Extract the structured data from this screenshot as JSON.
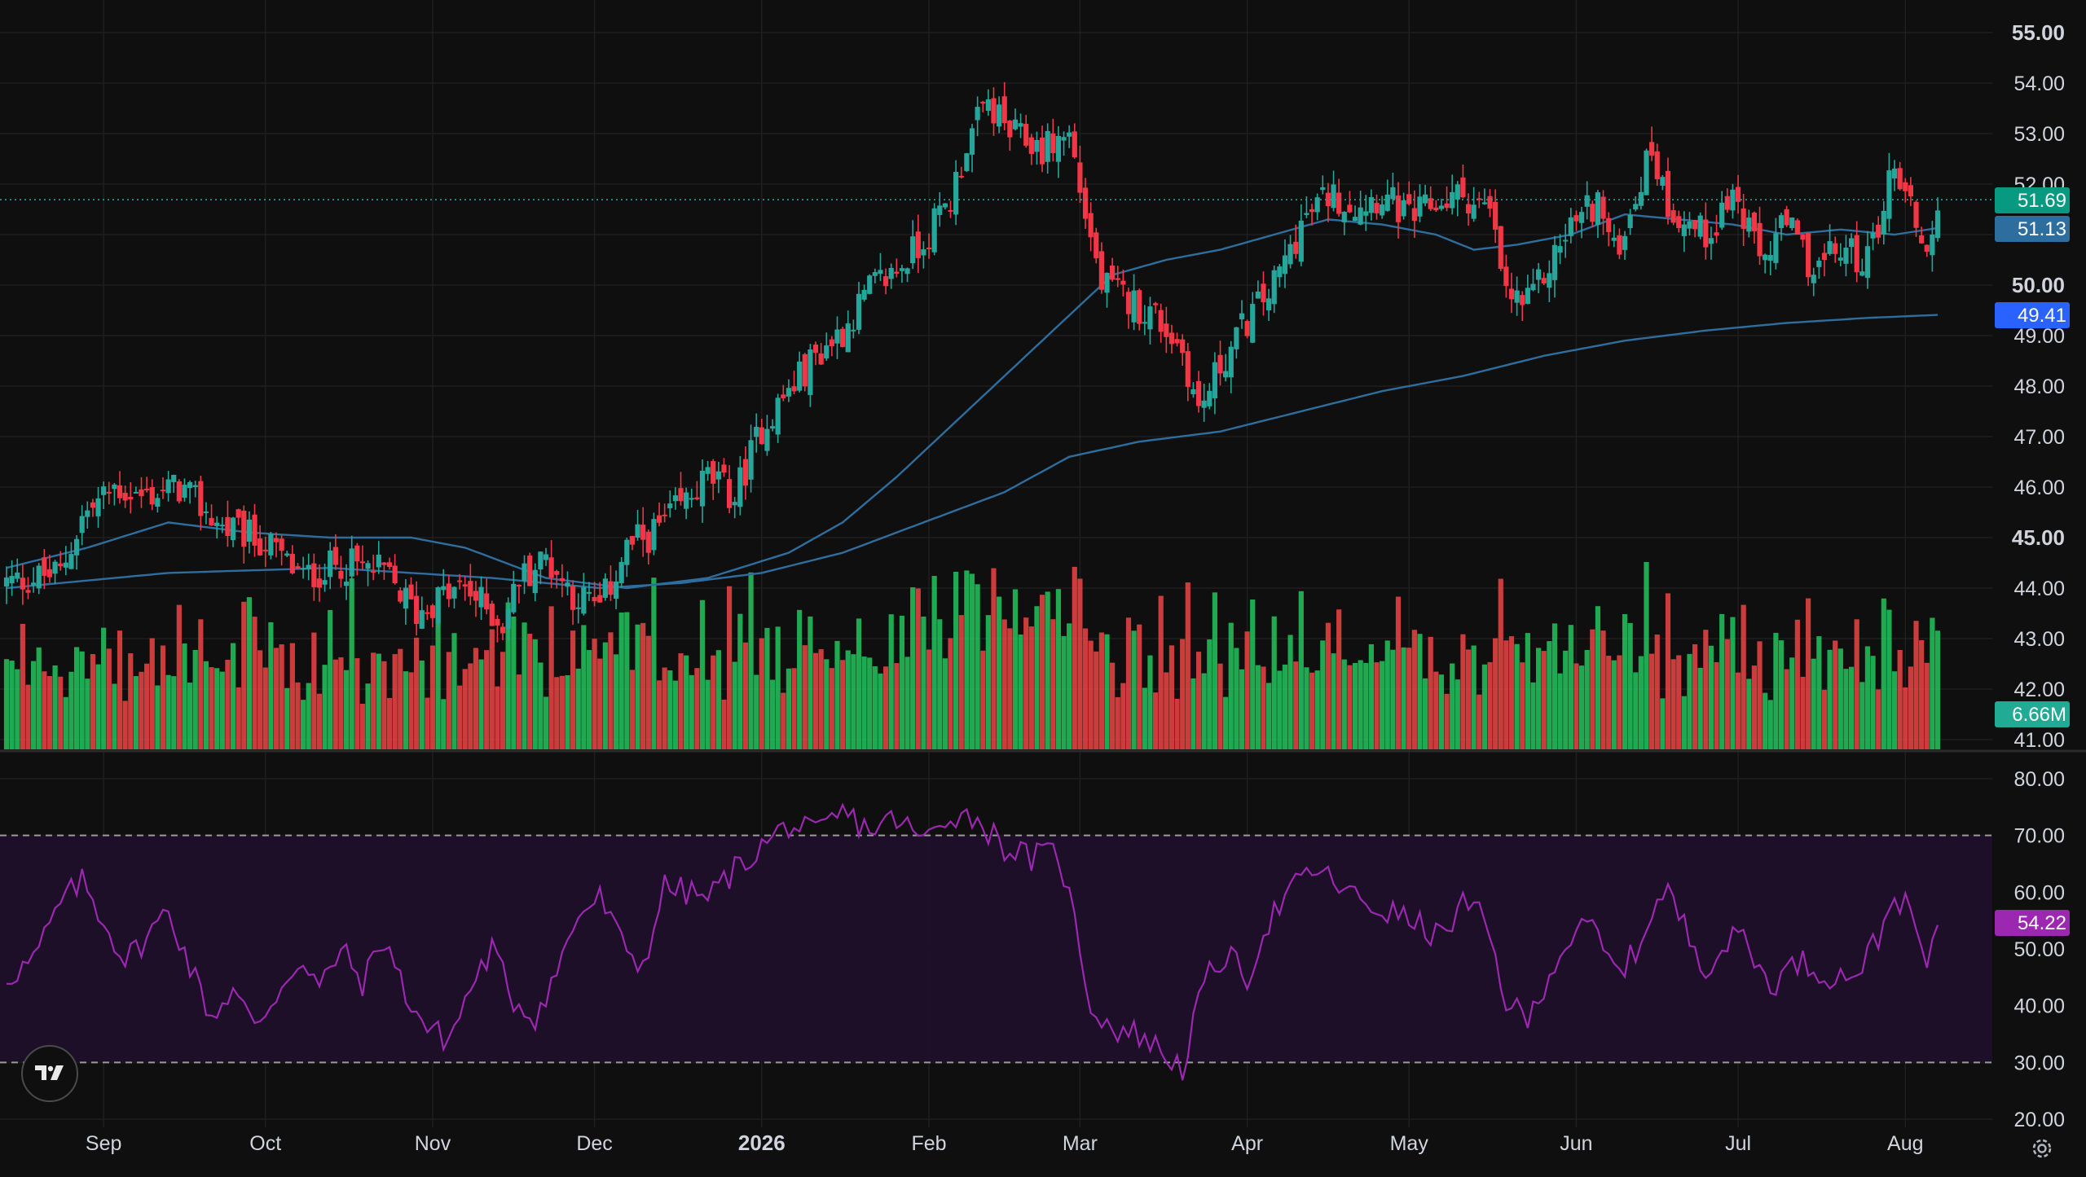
{
  "chart_data": {
    "type": "candlestick",
    "title": "",
    "price_axis": {
      "ticks": [
        "55.00",
        "54.00",
        "53.00",
        "52.00",
        "51.00",
        "50.00",
        "49.00",
        "48.00",
        "47.00",
        "46.00",
        "45.00",
        "44.00",
        "43.00",
        "42.00",
        "41.00"
      ],
      "bold_ticks": [
        "55.00",
        "50.00",
        "45.00"
      ],
      "range": [
        41.0,
        55.0
      ]
    },
    "rsi_axis": {
      "ticks": [
        "80.00",
        "70.00",
        "60.00",
        "50.00",
        "40.00",
        "30.00",
        "20.00"
      ],
      "range": [
        20,
        80
      ],
      "band": [
        30,
        70
      ]
    },
    "time_axis": {
      "labels": [
        {
          "text": "Sep",
          "bold": false,
          "day": 18
        },
        {
          "text": "Oct",
          "bold": false,
          "day": 48
        },
        {
          "text": "Nov",
          "bold": false,
          "day": 79
        },
        {
          "text": "Dec",
          "bold": false,
          "day": 109
        },
        {
          "text": "2026",
          "bold": true,
          "day": 140
        },
        {
          "text": "Feb",
          "bold": false,
          "day": 171
        },
        {
          "text": "Mar",
          "bold": false,
          "day": 199
        },
        {
          "text": "Apr",
          "bold": false,
          "day": 230
        },
        {
          "text": "May",
          "bold": false,
          "day": 260
        },
        {
          "text": "Jun",
          "bold": false,
          "day": 291
        },
        {
          "text": "Jul",
          "bold": false,
          "day": 321
        },
        {
          "text": "Aug",
          "bold": false,
          "day": 352
        }
      ]
    },
    "price_anchors": [
      [
        0,
        44.1
      ],
      [
        10,
        44.3
      ],
      [
        14,
        45.4
      ],
      [
        20,
        46.0
      ],
      [
        25,
        45.8
      ],
      [
        32,
        46.0
      ],
      [
        40,
        45.2
      ],
      [
        48,
        44.9
      ],
      [
        55,
        44.2
      ],
      [
        62,
        44.5
      ],
      [
        70,
        44.3
      ],
      [
        76,
        43.5
      ],
      [
        80,
        43.8
      ],
      [
        85,
        44.0
      ],
      [
        92,
        43.3
      ],
      [
        95,
        44.2
      ],
      [
        100,
        44.6
      ],
      [
        105,
        43.9
      ],
      [
        110,
        43.6
      ],
      [
        115,
        44.8
      ],
      [
        120,
        45.1
      ],
      [
        125,
        45.6
      ],
      [
        130,
        46.2
      ],
      [
        135,
        45.8
      ],
      [
        140,
        47.2
      ],
      [
        145,
        47.9
      ],
      [
        150,
        48.6
      ],
      [
        155,
        49.1
      ],
      [
        160,
        49.9
      ],
      [
        165,
        50.3
      ],
      [
        170,
        50.9
      ],
      [
        175,
        51.7
      ],
      [
        178,
        52.8
      ],
      [
        182,
        53.6
      ],
      [
        186,
        53.0
      ],
      [
        192,
        52.7
      ],
      [
        197,
        53.0
      ],
      [
        200,
        51.4
      ],
      [
        203,
        50.0
      ],
      [
        208,
        49.7
      ],
      [
        213,
        49.4
      ],
      [
        218,
        48.7
      ],
      [
        221,
        47.5
      ],
      [
        225,
        48.4
      ],
      [
        230,
        49.3
      ],
      [
        235,
        50.0
      ],
      [
        240,
        51.2
      ],
      [
        245,
        51.8
      ],
      [
        250,
        51.6
      ],
      [
        255,
        51.8
      ],
      [
        260,
        51.3
      ],
      [
        265,
        51.6
      ],
      [
        270,
        51.8
      ],
      [
        275,
        51.4
      ],
      [
        278,
        49.8
      ],
      [
        282,
        49.6
      ],
      [
        286,
        50.4
      ],
      [
        290,
        51.2
      ],
      [
        295,
        51.7
      ],
      [
        298,
        50.6
      ],
      [
        302,
        51.8
      ],
      [
        305,
        52.7
      ],
      [
        308,
        51.6
      ],
      [
        312,
        51.2
      ],
      [
        315,
        51.0
      ],
      [
        320,
        51.8
      ],
      [
        325,
        50.5
      ],
      [
        330,
        51.2
      ],
      [
        335,
        50.3
      ],
      [
        340,
        50.7
      ],
      [
        345,
        50.5
      ],
      [
        350,
        52.4
      ],
      [
        353,
        51.6
      ],
      [
        356,
        50.6
      ],
      [
        358,
        51.69
      ]
    ],
    "rsi_anchors": [
      [
        0,
        45
      ],
      [
        5,
        48
      ],
      [
        10,
        58
      ],
      [
        14,
        62
      ],
      [
        18,
        55
      ],
      [
        22,
        48
      ],
      [
        26,
        52
      ],
      [
        30,
        57
      ],
      [
        34,
        47
      ],
      [
        38,
        38
      ],
      [
        42,
        43
      ],
      [
        46,
        36
      ],
      [
        50,
        42
      ],
      [
        54,
        48
      ],
      [
        58,
        43
      ],
      [
        62,
        50
      ],
      [
        66,
        44
      ],
      [
        70,
        52
      ],
      [
        74,
        42
      ],
      [
        78,
        36
      ],
      [
        82,
        34
      ],
      [
        86,
        43
      ],
      [
        90,
        50
      ],
      [
        94,
        41
      ],
      [
        98,
        38
      ],
      [
        102,
        46
      ],
      [
        106,
        56
      ],
      [
        110,
        59
      ],
      [
        114,
        51
      ],
      [
        118,
        47
      ],
      [
        122,
        61
      ],
      [
        126,
        60
      ],
      [
        130,
        59
      ],
      [
        135,
        64
      ],
      [
        140,
        68
      ],
      [
        145,
        72
      ],
      [
        150,
        70
      ],
      [
        155,
        74
      ],
      [
        160,
        71
      ],
      [
        165,
        73
      ],
      [
        170,
        69
      ],
      [
        175,
        74
      ],
      [
        180,
        73
      ],
      [
        185,
        68
      ],
      [
        190,
        66
      ],
      [
        195,
        67
      ],
      [
        198,
        55
      ],
      [
        201,
        40
      ],
      [
        205,
        36
      ],
      [
        210,
        35
      ],
      [
        214,
        32
      ],
      [
        218,
        29
      ],
      [
        222,
        44
      ],
      [
        226,
        49
      ],
      [
        230,
        45
      ],
      [
        234,
        55
      ],
      [
        238,
        60
      ],
      [
        242,
        64
      ],
      [
        246,
        62
      ],
      [
        250,
        59
      ],
      [
        254,
        57
      ],
      [
        258,
        56
      ],
      [
        262,
        54
      ],
      [
        266,
        52
      ],
      [
        270,
        58
      ],
      [
        274,
        55
      ],
      [
        278,
        41
      ],
      [
        282,
        37
      ],
      [
        286,
        46
      ],
      [
        290,
        52
      ],
      [
        294,
        54
      ],
      [
        298,
        46
      ],
      [
        302,
        49
      ],
      [
        305,
        57
      ],
      [
        308,
        60
      ],
      [
        312,
        52
      ],
      [
        315,
        47
      ],
      [
        318,
        50
      ],
      [
        322,
        53
      ],
      [
        325,
        46
      ],
      [
        328,
        44
      ],
      [
        332,
        48
      ],
      [
        336,
        46
      ],
      [
        340,
        45
      ],
      [
        344,
        47
      ],
      [
        348,
        54
      ],
      [
        350,
        60
      ],
      [
        353,
        56
      ],
      [
        356,
        47
      ],
      [
        358,
        54.22
      ]
    ],
    "ma_fast": {
      "period": 50,
      "color": "#2e6e9e"
    },
    "ma_slow": {
      "period": 200,
      "color": "#2e6e9e"
    },
    "ma_slow_anchors": [
      [
        0,
        44.0
      ],
      [
        30,
        44.3
      ],
      [
        60,
        44.4
      ],
      [
        90,
        44.2
      ],
      [
        110,
        44.0
      ],
      [
        125,
        44.1
      ],
      [
        140,
        44.3
      ],
      [
        155,
        44.7
      ],
      [
        170,
        45.3
      ],
      [
        185,
        45.9
      ],
      [
        197,
        46.6
      ],
      [
        210,
        46.9
      ],
      [
        225,
        47.1
      ],
      [
        240,
        47.5
      ],
      [
        255,
        47.9
      ],
      [
        270,
        48.2
      ],
      [
        285,
        48.6
      ],
      [
        300,
        48.9
      ],
      [
        315,
        49.1
      ],
      [
        330,
        49.25
      ],
      [
        345,
        49.35
      ],
      [
        358,
        49.41
      ]
    ],
    "ma_fast_anchors": [
      [
        0,
        44.4
      ],
      [
        15,
        44.8
      ],
      [
        30,
        45.3
      ],
      [
        45,
        45.1
      ],
      [
        60,
        45.0
      ],
      [
        75,
        45.0
      ],
      [
        85,
        44.8
      ],
      [
        100,
        44.2
      ],
      [
        115,
        44.0
      ],
      [
        130,
        44.2
      ],
      [
        145,
        44.7
      ],
      [
        155,
        45.3
      ],
      [
        165,
        46.2
      ],
      [
        175,
        47.2
      ],
      [
        185,
        48.2
      ],
      [
        195,
        49.2
      ],
      [
        205,
        50.2
      ],
      [
        215,
        50.5
      ],
      [
        225,
        50.7
      ],
      [
        235,
        51.0
      ],
      [
        245,
        51.3
      ],
      [
        255,
        51.2
      ],
      [
        265,
        51.0
      ],
      [
        272,
        50.7
      ],
      [
        280,
        50.8
      ],
      [
        290,
        51.0
      ],
      [
        300,
        51.4
      ],
      [
        310,
        51.3
      ],
      [
        320,
        51.2
      ],
      [
        330,
        51.0
      ],
      [
        340,
        51.1
      ],
      [
        350,
        51.0
      ],
      [
        358,
        51.13
      ]
    ],
    "volume_max": 44,
    "badges": {
      "last_price": {
        "text": "51.69",
        "color": "#089981"
      },
      "ma_fast": {
        "text": "51.13",
        "color": "#2e6e9e"
      },
      "ma_slow": {
        "text": "49.41",
        "color": "#2962ff"
      },
      "volume": {
        "text": "6.66M",
        "color": "#22ab94"
      },
      "rsi": {
        "text": "54.22",
        "color": "#9c27b0"
      }
    },
    "colors": {
      "up": "#26a69a",
      "down": "#f23645",
      "vol_up": "#22c55e",
      "vol_down": "#ef4444",
      "rsi_line": "#9c27b0",
      "rsi_band": "#1e1029",
      "grid": "#1f1f1f",
      "bg": "#0f0f0f"
    },
    "num_days": 359
  },
  "ui": {
    "logo_icon": "tradingview-logo-icon",
    "settings_icon": "gear-icon"
  }
}
